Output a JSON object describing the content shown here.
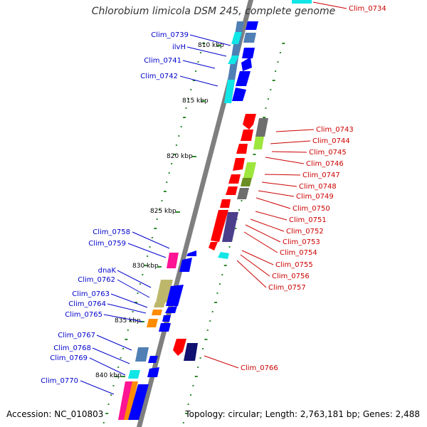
{
  "title": "Chlorobium limicola DSM 245, complete genome",
  "footer": {
    "accession": "Accession: NC_010803",
    "summary": "Topology: circular; Length: 2,763,181 bp; Genes: 2,488"
  },
  "colors": {
    "backbone": "#7f7f7f",
    "tick": "#2f8a2f",
    "label_left": "#0000cc",
    "label_right": "#cc0000",
    "gene_blue": "#0000ff",
    "gene_red": "#ff0000",
    "gene_cyan": "#11e6e6",
    "gene_steel": "#4f7fb4",
    "gene_lime": "#9de63d",
    "gene_olive": "#6b8e23",
    "gene_grey": "#6e6e6e",
    "gene_magenta": "#ff1493",
    "gene_orange": "#ff8c00",
    "gene_khaki": "#bdb76b",
    "gene_slate": "#4b3f8c",
    "gene_navy": "#101070"
  },
  "scale_labels": [
    "810 kbp",
    "815 kbp",
    "820 kbp",
    "825 kbp",
    "830 kbp",
    "835 kbp",
    "840 kbp"
  ],
  "genes_left": [
    "Clim_0739",
    "ilvH",
    "Clim_0741",
    "Clim_0742",
    "Clim_0758",
    "Clim_0759",
    "dnaK",
    "Clim_0762",
    "Clim_0763",
    "Clim_0764",
    "Clim_0765",
    "Clim_0767",
    "Clim_0768",
    "Clim_0769",
    "Clim_0770"
  ],
  "genes_right": [
    "Clim_0734",
    "Clim_0743",
    "Clim_0744",
    "Clim_0745",
    "Clim_0746",
    "Clim_0747",
    "Clim_0748",
    "Clim_0749",
    "Clim_0750",
    "Clim_0751",
    "Clim_0752",
    "Clim_0753",
    "Clim_0754",
    "Clim_0755",
    "Clim_0756",
    "Clim_0757",
    "Clim_0766"
  ]
}
